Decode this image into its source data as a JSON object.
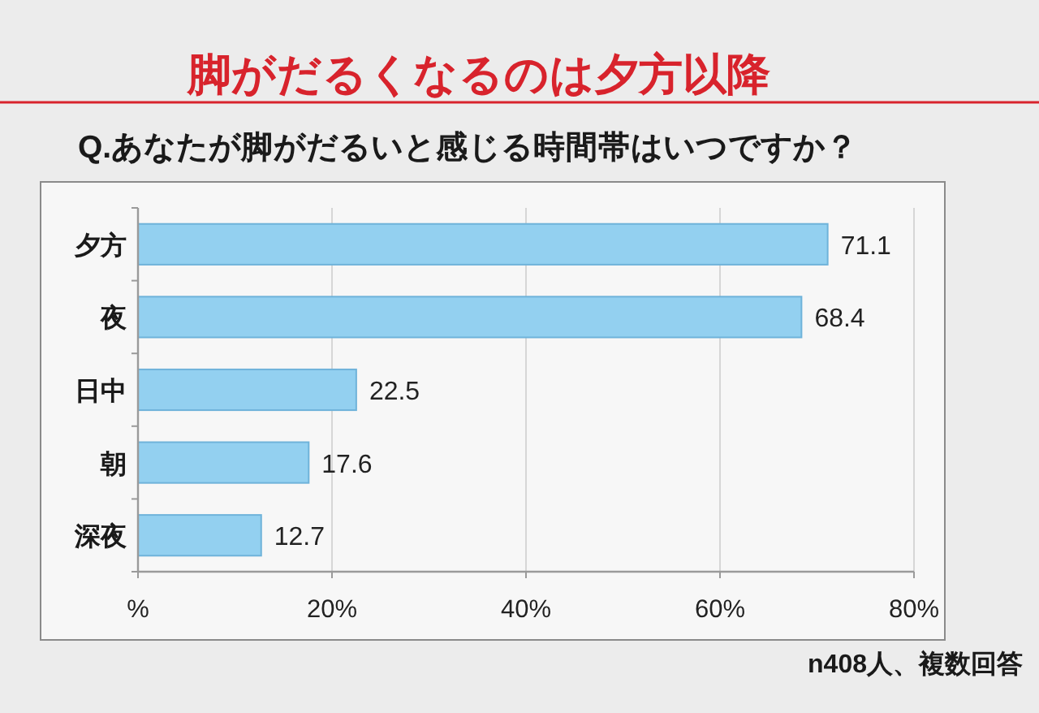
{
  "chart_data": {
    "type": "bar",
    "orientation": "horizontal",
    "title": "脚がだるくなるのは夕方以降",
    "subtitle": "Q.あなたが脚がだるいと感じる時間帯はいつですか？",
    "categories": [
      "夕方",
      "夜",
      "日中",
      "朝",
      "深夜"
    ],
    "values": [
      71.1,
      68.4,
      22.5,
      17.6,
      12.7
    ],
    "color": "#93d0f0",
    "xlim": [
      0,
      80
    ],
    "xticks": [
      {
        "value": 0,
        "label": "%"
      },
      {
        "value": 20,
        "label": "20%"
      },
      {
        "value": 40,
        "label": "40%"
      },
      {
        "value": 60,
        "label": "60%"
      },
      {
        "value": 80,
        "label": "80%"
      }
    ],
    "grid": "x",
    "data_labels": true,
    "annotations": [
      "n408人、複数回答"
    ]
  }
}
